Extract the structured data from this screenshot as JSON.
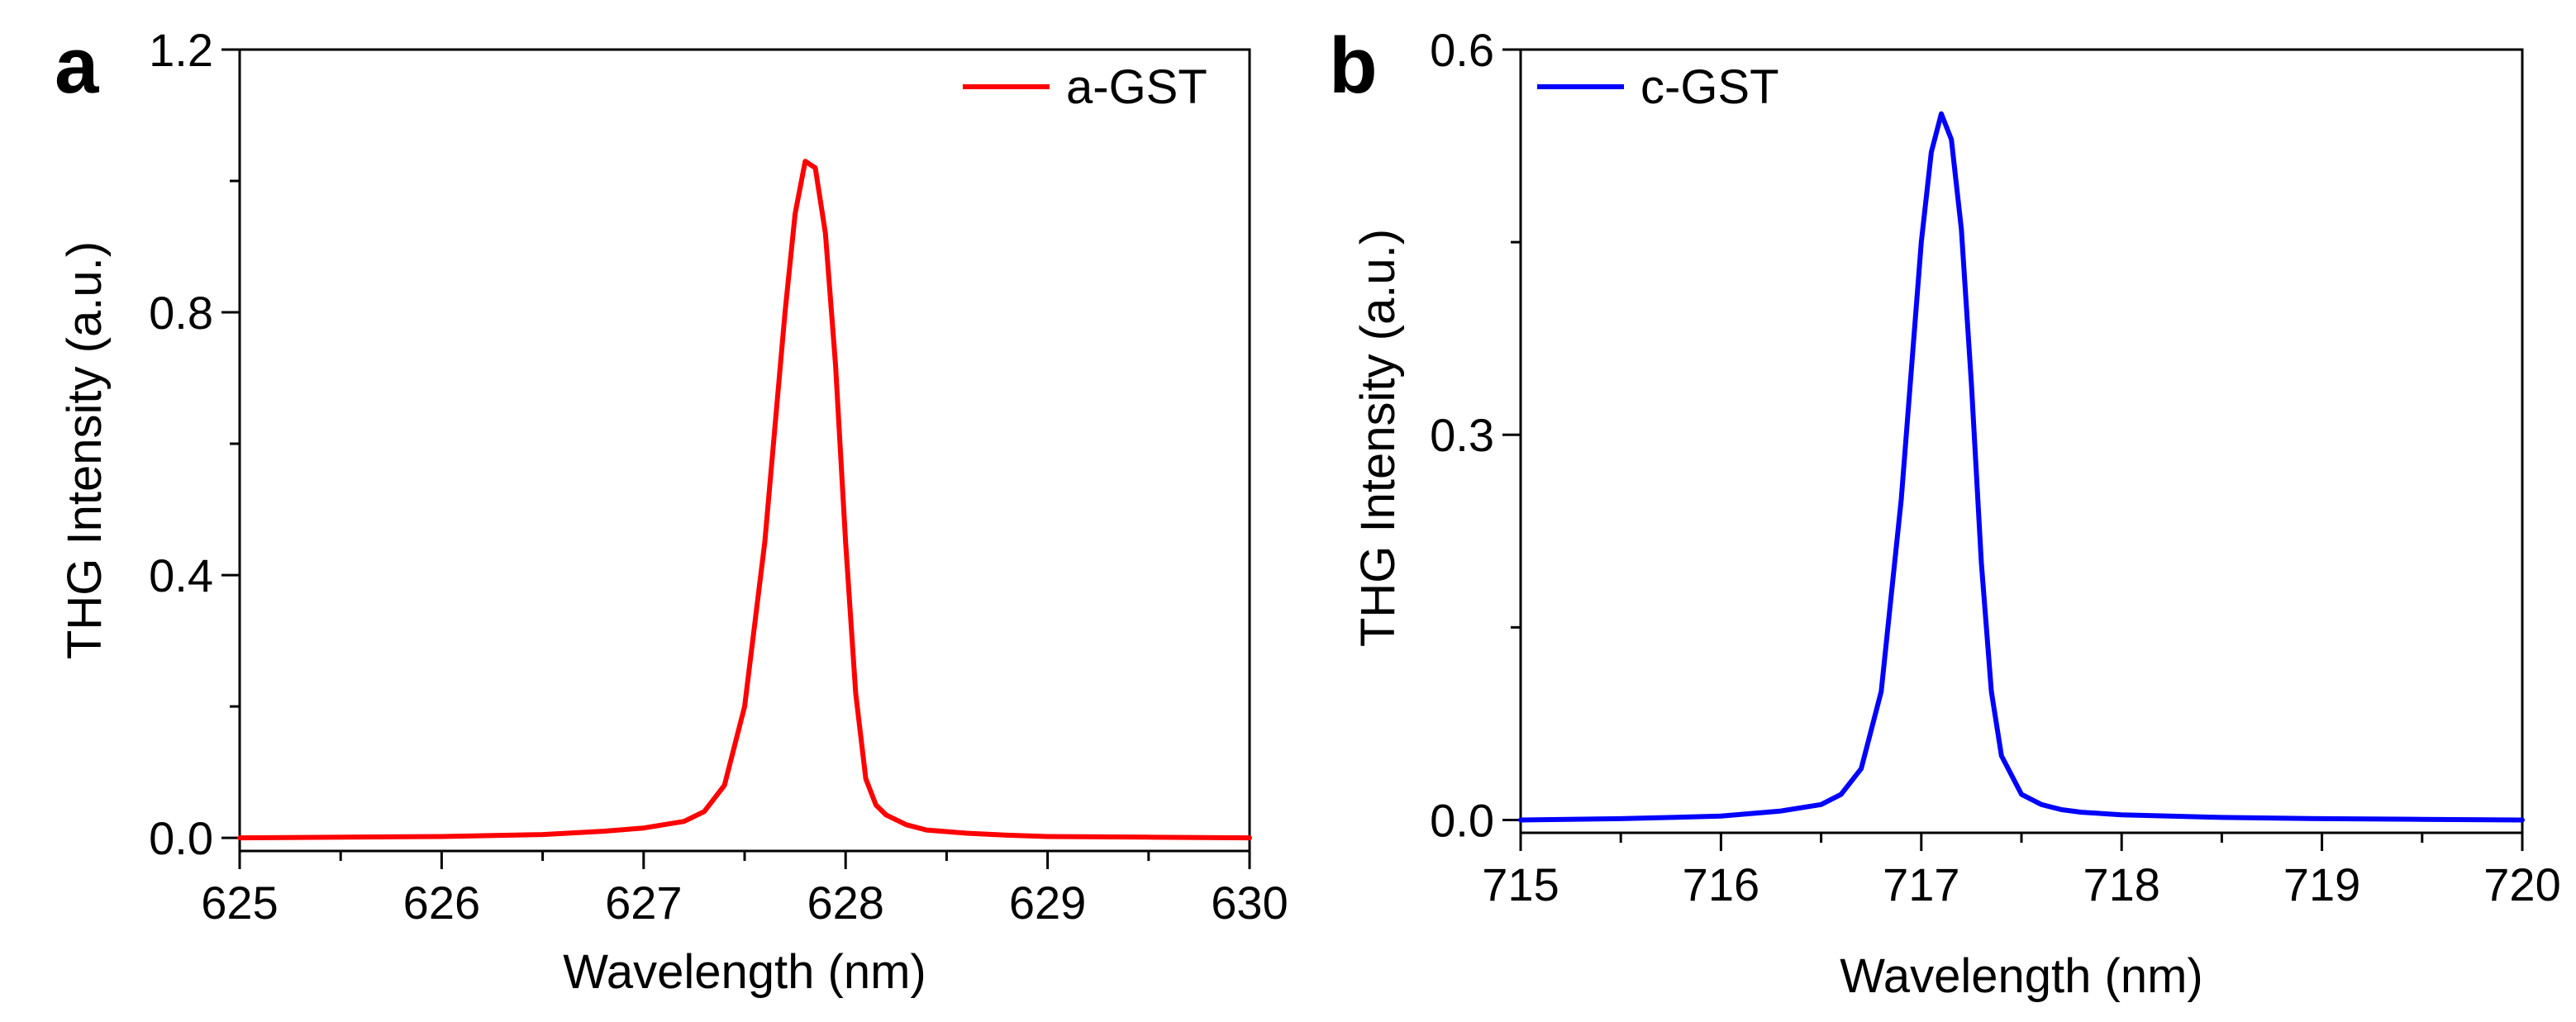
{
  "chart_data": [
    {
      "type": "line",
      "panel_label": "a",
      "xlabel": "Wavelength (nm)",
      "ylabel": "THG Intensity (a.u.)",
      "xlim": [
        625,
        630
      ],
      "ylim": [
        -0.02,
        1.2
      ],
      "x_ticks": [
        625,
        626,
        627,
        628,
        629,
        630
      ],
      "x_tick_labels": [
        "625",
        "626",
        "627",
        "628",
        "629",
        "630"
      ],
      "y_ticks": [
        0.0,
        0.4,
        0.8,
        1.2
      ],
      "y_tick_labels": [
        "0.0",
        "0.4",
        "0.8",
        "1.2"
      ],
      "legend_position": "top-right",
      "series": [
        {
          "name": "a-GST",
          "color": "#ff0000",
          "x": [
            625.0,
            626.0,
            626.5,
            626.8,
            627.0,
            627.2,
            627.3,
            627.4,
            627.5,
            627.6,
            627.7,
            627.75,
            627.8,
            627.85,
            627.9,
            627.95,
            628.0,
            628.05,
            628.1,
            628.15,
            628.2,
            628.3,
            628.4,
            628.6,
            628.8,
            629.0,
            629.5,
            630.0
          ],
          "y": [
            0.0,
            0.002,
            0.005,
            0.01,
            0.015,
            0.025,
            0.04,
            0.08,
            0.2,
            0.45,
            0.8,
            0.95,
            1.03,
            1.02,
            0.92,
            0.72,
            0.45,
            0.22,
            0.09,
            0.05,
            0.035,
            0.02,
            0.012,
            0.007,
            0.004,
            0.002,
            0.001,
            0.0
          ]
        }
      ]
    },
    {
      "type": "line",
      "panel_label": "b",
      "xlabel": "Wavelength (nm)",
      "ylabel": "THG Intensity (a.u.)",
      "xlim": [
        715,
        720
      ],
      "ylim": [
        -0.01,
        0.6
      ],
      "x_ticks": [
        715,
        716,
        717,
        718,
        719,
        720
      ],
      "x_tick_labels": [
        "715",
        "716",
        "717",
        "718",
        "719",
        "720"
      ],
      "y_ticks": [
        0.0,
        0.3,
        0.6
      ],
      "y_tick_labels": [
        "0.0",
        "0.3",
        "0.6"
      ],
      "legend_position": "top-left",
      "series": [
        {
          "name": "c-GST",
          "color": "#0000ff",
          "x": [
            715.0,
            715.5,
            716.0,
            716.3,
            716.5,
            716.6,
            716.7,
            716.8,
            716.9,
            717.0,
            717.05,
            717.1,
            717.15,
            717.2,
            717.25,
            717.3,
            717.35,
            717.4,
            717.5,
            717.6,
            717.7,
            717.8,
            718.0,
            718.5,
            719.0,
            719.5,
            720.0
          ],
          "y": [
            0.0,
            0.001,
            0.003,
            0.007,
            0.012,
            0.02,
            0.04,
            0.1,
            0.25,
            0.45,
            0.52,
            0.55,
            0.53,
            0.46,
            0.34,
            0.2,
            0.1,
            0.05,
            0.02,
            0.012,
            0.008,
            0.006,
            0.004,
            0.002,
            0.001,
            0.0005,
            0.0
          ]
        }
      ]
    }
  ]
}
